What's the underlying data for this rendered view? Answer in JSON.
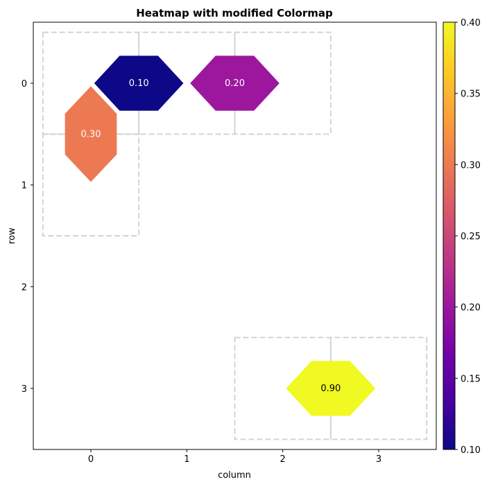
{
  "chart_data": {
    "type": "heatmap",
    "title": "Heatmap with modified Colormap",
    "xlabel": "column",
    "ylabel": "row",
    "xlim": [
      -0.6,
      3.6
    ],
    "ylim": [
      3.6,
      -0.6
    ],
    "xticks": [
      0,
      1,
      2,
      3
    ],
    "yticks": [
      0,
      1,
      2,
      3
    ],
    "grid": false,
    "colormap": "plasma",
    "colorbar": {
      "range": [
        0.1,
        0.4
      ],
      "ticks": [
        "0.10",
        "0.15",
        "0.20",
        "0.25",
        "0.30",
        "0.35",
        "0.40"
      ],
      "colors": [
        "#0d0887",
        "#46039f",
        "#7201a8",
        "#9c179e",
        "#bd3786",
        "#d8576b",
        "#ed7953",
        "#fb9f3a",
        "#fdca26",
        "#f0f921"
      ]
    },
    "cells": [
      {
        "x": 0.5,
        "y": 0,
        "value": 0.1,
        "label": "0.10",
        "orientation": "horizontal",
        "color": "#0d0887",
        "text_color": "#ffffff"
      },
      {
        "x": 1.5,
        "y": 0,
        "value": 0.2,
        "label": "0.20",
        "orientation": "horizontal",
        "color": "#9c179e",
        "text_color": "#ffffff"
      },
      {
        "x": 0,
        "y": 0.5,
        "value": 0.3,
        "label": "0.30",
        "orientation": "vertical",
        "color": "#ed7953",
        "text_color": "#ffffff"
      },
      {
        "x": 2.5,
        "y": 3,
        "value": 0.9,
        "label": "0.90",
        "orientation": "horizontal",
        "color": "#f0f921",
        "text_color": "#000000"
      }
    ],
    "outline_boxes": [
      {
        "x": [
          -0.5,
          2.5
        ],
        "y": [
          -0.5,
          0.5
        ],
        "dividers_x": [
          0.5,
          1.5
        ]
      },
      {
        "x": [
          -0.5,
          0.5
        ],
        "y": [
          0.5,
          1.5
        ],
        "dividers_x": []
      },
      {
        "x": [
          1.5,
          3.5
        ],
        "y": [
          2.5,
          3.5
        ],
        "dividers_x": [
          2.5
        ]
      }
    ],
    "outline_color": "#d3d3d3"
  }
}
